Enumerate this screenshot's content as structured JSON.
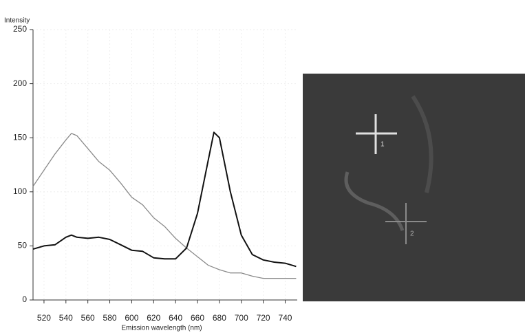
{
  "chart_data": {
    "type": "line",
    "ylabel": "Intensity",
    "xlabel": "Emission wavelength (nm)",
    "x": [
      510,
      520,
      530,
      540,
      545,
      550,
      560,
      570,
      580,
      590,
      600,
      610,
      620,
      630,
      640,
      650,
      660,
      670,
      675,
      680,
      690,
      700,
      710,
      720,
      730,
      740,
      750
    ],
    "series": [
      {
        "color": "#8a8a8a",
        "values": [
          105,
          120,
          135,
          148,
          154,
          152,
          140,
          128,
          120,
          108,
          95,
          88,
          76,
          68,
          57,
          48,
          40,
          32,
          30,
          28,
          25,
          25,
          22,
          20,
          20,
          20,
          20
        ]
      },
      {
        "color": "#111111",
        "values": [
          47,
          50,
          51,
          58,
          60,
          58,
          57,
          58,
          56,
          51,
          46,
          45,
          39,
          38,
          38,
          48,
          80,
          130,
          155,
          150,
          100,
          60,
          42,
          37,
          35,
          34,
          31
        ]
      }
    ],
    "xlim": [
      510,
      751
    ],
    "ylim": [
      0,
      250
    ],
    "xticks": [
      520,
      540,
      560,
      580,
      600,
      620,
      640,
      660,
      680,
      700,
      720,
      740
    ],
    "yticks": [
      0,
      50,
      100,
      150,
      200,
      250
    ],
    "grid": true
  },
  "image": {
    "labels": [
      "1",
      "2"
    ]
  }
}
